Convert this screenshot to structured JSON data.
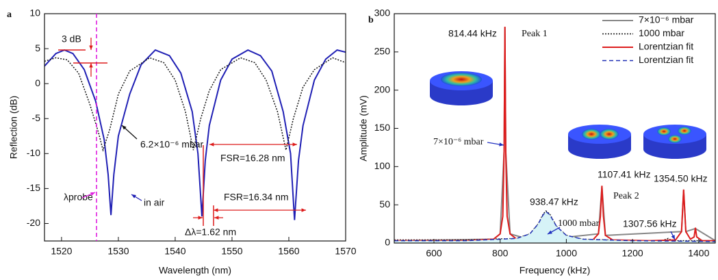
{
  "chart_data": [
    {
      "type": "line",
      "panel_label": "a",
      "x_label": "Wavelength (nm)",
      "y_label": "Reflection (dB)",
      "xlim": [
        1517,
        1570
      ],
      "ylim": [
        -22.5,
        10
      ],
      "xticks": [
        1520,
        1530,
        1540,
        1550,
        1560,
        1570
      ],
      "yticks": [
        10,
        5,
        0,
        -5,
        -10,
        -15,
        -20
      ],
      "series": [
        {
          "color": "#1f1fb4",
          "style": "solid",
          "x": [
            1517,
            1519,
            1520.5,
            1522,
            1524,
            1526,
            1527.5,
            1528.2,
            1528.7,
            1529.2,
            1530,
            1532,
            1534,
            1536.5,
            1539,
            1541,
            1543,
            1544,
            1544.7,
            1545.3,
            1546,
            1548,
            1550,
            1552.8,
            1555,
            1557,
            1559,
            1560.3,
            1561,
            1561.7,
            1562.5,
            1564.5,
            1566.5,
            1568.5,
            1570
          ],
          "values": [
            2.5,
            4.3,
            4.8,
            4.3,
            2,
            -2.5,
            -8,
            -13,
            -18.8,
            -13,
            -7.5,
            -1.5,
            2.7,
            4.8,
            4,
            1.5,
            -4,
            -10,
            -19,
            -11,
            -6,
            0.5,
            3.5,
            4.8,
            4,
            1.8,
            -4,
            -10,
            -19.5,
            -11,
            -6,
            0.5,
            3.5,
            4.8,
            4.5
          ]
        },
        {
          "color": "#111111",
          "style": "dotted",
          "x": [
            1517,
            1519,
            1521,
            1523,
            1525,
            1526.5,
            1527.3,
            1528.5,
            1530,
            1532,
            1535.5,
            1538,
            1540,
            1541.8,
            1543.2,
            1544.5,
            1546,
            1548,
            1551.5,
            1554,
            1556,
            1558,
            1559.5,
            1560.8,
            1562.5,
            1564.5,
            1567.7,
            1570
          ],
          "values": [
            3.2,
            3.7,
            3.4,
            1.5,
            -3,
            -7,
            -9.5,
            -6.5,
            -1.5,
            1.8,
            3.7,
            3,
            0.5,
            -4,
            -9.5,
            -5,
            -1,
            2,
            3.7,
            3,
            0.5,
            -4,
            -9.5,
            -5,
            -0.5,
            2,
            3.7,
            3
          ]
        }
      ],
      "annotations": [
        "3 dB",
        "λprobe",
        "6.2×10⁻⁶ mbar",
        "in air",
        "FSR=16.28 nm",
        "FSR=16.34 nm",
        "Δλ=1.62 nm"
      ]
    },
    {
      "type": "line",
      "panel_label": "b",
      "x_label": "Frequency (kHz)",
      "y_label": "Amplitude (mV)",
      "xlim": [
        480,
        1450
      ],
      "ylim": [
        0,
        300
      ],
      "xticks": [
        600,
        800,
        1000,
        1200,
        1400
      ],
      "yticks": [
        0,
        50,
        100,
        150,
        200,
        250,
        300
      ],
      "legend": "top-right",
      "series": [
        {
          "name": "7×10⁻⁶ mbar",
          "color": "#888888",
          "style": "solid",
          "x": [
            480,
            780,
            800,
            812,
            814.44,
            817,
            830,
            900,
            1097,
            1107.41,
            1118,
            1348,
            1354.5,
            1361,
            1390,
            1450
          ],
          "values": [
            3,
            5,
            12,
            120,
            282,
            120,
            12,
            3,
            12,
            74,
            10,
            15,
            69,
            15,
            19,
            3
          ]
        },
        {
          "name": "1000 mbar",
          "color": "#111111",
          "style": "dotted",
          "x": [
            480,
            700,
            850,
            890,
            915,
            930,
            938.47,
            950,
            970,
            1000,
            1050,
            1200,
            1290,
            1307.56,
            1320,
            1450
          ],
          "values": [
            4,
            4,
            6,
            12,
            25,
            38,
            42,
            38,
            22,
            10,
            5,
            3,
            3,
            6,
            3,
            3
          ]
        },
        {
          "name": "Lorentzian fit",
          "color": "#dd1c1c",
          "style": "solid",
          "x": [
            480,
            700,
            780,
            800,
            808,
            812,
            814.44,
            817,
            821,
            830,
            850,
            900,
            1000,
            1080,
            1097,
            1103,
            1107.41,
            1112,
            1118,
            1140,
            1250,
            1330,
            1348,
            1354.5,
            1361,
            1375,
            1386,
            1390,
            1394,
            1410,
            1450
          ],
          "values": [
            3,
            3,
            5,
            12,
            35,
            120,
            283,
            120,
            35,
            12,
            5,
            3,
            3,
            4,
            12,
            35,
            75,
            35,
            10,
            4,
            3,
            4,
            15,
            70,
            15,
            5,
            8,
            20,
            8,
            3,
            3
          ]
        },
        {
          "name": "Lorentzian fit",
          "color": "#1f2fb4",
          "style": "dashed",
          "fill": "#d6f3f7",
          "x": [
            480,
            700,
            850,
            890,
            915,
            930,
            938.47,
            950,
            970,
            1000,
            1050,
            1200,
            1450
          ],
          "values": [
            3,
            3,
            6,
            12,
            25,
            37,
            41,
            37,
            22,
            10,
            5,
            3,
            2
          ]
        }
      ],
      "annotations": [
        "814.44 kHz",
        "Peak 1",
        "7×10⁻⁶ mbar",
        "938.47 kHz",
        "1000 mbar",
        "1107.41 kHz",
        "Peak 2",
        "1354.50 kHz",
        "1307.56 kHz"
      ]
    }
  ]
}
